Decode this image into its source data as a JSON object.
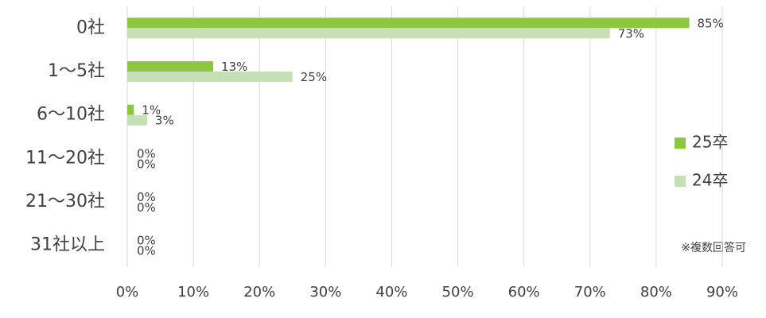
{
  "chart_data": {
    "type": "hbar",
    "categories": [
      "0社",
      "1～5社",
      "6～10社",
      "11～20社",
      "21～30社",
      "31社以上"
    ],
    "series": [
      {
        "name": "25卒",
        "color": "#8dc63f",
        "values": [
          85,
          13,
          1,
          0,
          0,
          0
        ],
        "value_labels": [
          "85%",
          "13%",
          "1%",
          "0%",
          "0%",
          "0%"
        ]
      },
      {
        "name": "24卒",
        "color": "#c5e0b4",
        "values": [
          73,
          25,
          3,
          0,
          0,
          0
        ],
        "value_labels": [
          "73%",
          "25%",
          "3%",
          "0%",
          "0%",
          "0%"
        ]
      }
    ],
    "xlim": [
      0,
      90
    ],
    "xticks": [
      {
        "value": 0,
        "label": "0%"
      },
      {
        "value": 10,
        "label": "10%"
      },
      {
        "value": 20,
        "label": "20%"
      },
      {
        "value": 30,
        "label": "30%"
      },
      {
        "value": 40,
        "label": "40%"
      },
      {
        "value": 50,
        "label": "50%"
      },
      {
        "value": 60,
        "label": "60%"
      },
      {
        "value": 70,
        "label": "70%"
      },
      {
        "value": 80,
        "label": "80%"
      },
      {
        "value": 90,
        "label": "90%"
      }
    ],
    "grid": true,
    "legend": "right",
    "annotation": "※複数回答可"
  }
}
